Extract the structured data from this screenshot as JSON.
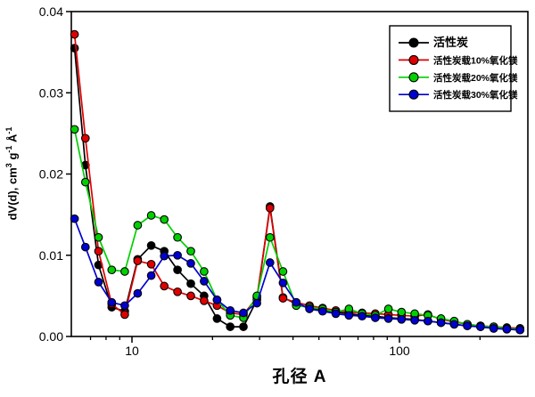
{
  "figure_bg": "#ffffff",
  "chart_data": {
    "type": "line",
    "title": "",
    "xlabel": "孔径 A",
    "ylabel": "dV(d), cm3 g-1 A-1",
    "ylabel_parts": [
      {
        "text": "dV(d), cm"
      },
      {
        "text": "3",
        "sup": true
      },
      {
        "text": " g"
      },
      {
        "text": "-1",
        "sup": true
      },
      {
        "text": " Å"
      },
      {
        "text": "-1",
        "sup": true
      }
    ],
    "xscale": "log",
    "xlim": [
      5.93,
      302
    ],
    "ylim": [
      0,
      0.04
    ],
    "grid": false,
    "x_major_ticks": [
      {
        "value": 10,
        "label": "10"
      },
      {
        "value": 100,
        "label": "100"
      }
    ],
    "x_minor_ticks": [
      7,
      8,
      9,
      20,
      30,
      40,
      50,
      60,
      70,
      80,
      90,
      200,
      300
    ],
    "y_major_ticks": [
      {
        "value": 0.0,
        "label": "0.00"
      },
      {
        "value": 0.01,
        "label": "0.01"
      },
      {
        "value": 0.02,
        "label": "0.02"
      },
      {
        "value": 0.03,
        "label": "0.03"
      },
      {
        "value": 0.04,
        "label": "0.04"
      }
    ],
    "x": [
      6.1,
      6.7,
      7.5,
      8.4,
      9.4,
      10.5,
      11.8,
      13.2,
      14.8,
      16.6,
      18.6,
      20.8,
      23.3,
      26.1,
      29.3,
      32.8,
      36.7,
      41.1,
      46.1,
      51.6,
      57.8,
      64.7,
      72.5,
      81.2,
      90.9,
      101.8,
      114.0,
      127.7,
      143.0,
      160.2,
      179.4,
      200.9,
      225.0,
      252.0,
      282.2
    ],
    "series": [
      {
        "name": "活性炭",
        "color": "#000000",
        "values": [
          0.0355,
          0.0211,
          0.0088,
          0.0036,
          0.0031,
          0.0095,
          0.0112,
          0.0105,
          0.0082,
          0.0065,
          0.005,
          0.0022,
          0.0012,
          0.0012,
          0.0045,
          0.016,
          0.0048,
          0.004,
          0.0035,
          0.0032,
          0.003,
          0.0028,
          0.0026,
          0.0025,
          0.0023,
          0.0022,
          0.0021,
          0.0019,
          0.0017,
          0.0015,
          0.0013,
          0.0012,
          0.001,
          0.0009,
          0.0008
        ]
      },
      {
        "name": "活性炭载10%氧化镁",
        "color": "#e00000",
        "values": [
          0.0372,
          0.0244,
          0.0105,
          0.004,
          0.0027,
          0.0093,
          0.0089,
          0.0062,
          0.0055,
          0.005,
          0.0044,
          0.0038,
          0.0029,
          0.0027,
          0.0048,
          0.0158,
          0.0047,
          0.0042,
          0.0038,
          0.0035,
          0.0032,
          0.003,
          0.0029,
          0.0028,
          0.0027,
          0.0026,
          0.0025,
          0.0027,
          0.0021,
          0.0018,
          0.0015,
          0.0013,
          0.0012,
          0.0011,
          0.001
        ]
      },
      {
        "name": "活性炭载20%氧化镁",
        "color": "#00d000",
        "values": [
          0.0255,
          0.019,
          0.0122,
          0.0082,
          0.008,
          0.0137,
          0.0149,
          0.0144,
          0.0122,
          0.0105,
          0.008,
          0.0045,
          0.0026,
          0.0023,
          0.005,
          0.0122,
          0.008,
          0.0038,
          0.0036,
          0.0034,
          0.003,
          0.0034,
          0.0028,
          0.0026,
          0.0034,
          0.003,
          0.0028,
          0.0026,
          0.0022,
          0.0019,
          0.0015,
          0.0013,
          0.0012,
          0.001,
          0.0009
        ]
      },
      {
        "name": "活性炭载30%氧化镁",
        "color": "#0000d0",
        "values": [
          0.0145,
          0.011,
          0.0067,
          0.0042,
          0.0038,
          0.0053,
          0.0075,
          0.0099,
          0.01,
          0.009,
          0.0068,
          0.0045,
          0.0032,
          0.0029,
          0.0041,
          0.0091,
          0.0066,
          0.0042,
          0.0034,
          0.0031,
          0.0028,
          0.0026,
          0.0025,
          0.0023,
          0.0022,
          0.0021,
          0.002,
          0.0019,
          0.0017,
          0.0015,
          0.0013,
          0.0012,
          0.001,
          0.0009,
          0.0008
        ]
      }
    ],
    "legend": {
      "position": "top-right",
      "entries": [
        "活性炭",
        "活性炭载10%氧化镁",
        "活性炭载20%氧化镁",
        "活性炭载30%氧化镁"
      ]
    },
    "marker": "circle-black-edge",
    "axis_color": "#000000"
  }
}
